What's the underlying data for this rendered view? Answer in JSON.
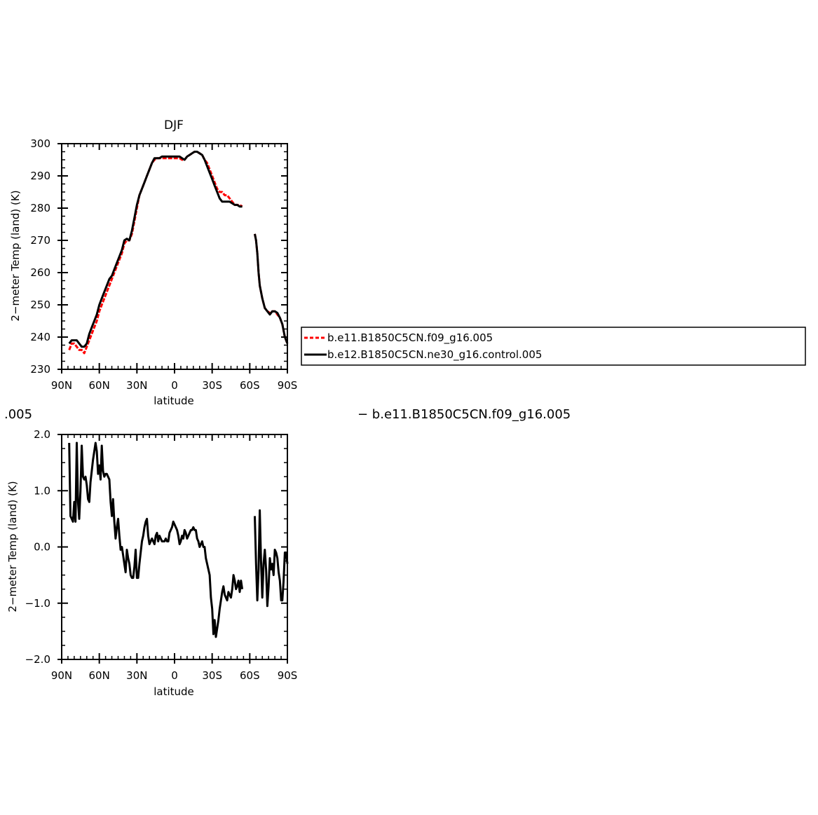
{
  "top_title": "DJF",
  "legend": {
    "items": [
      {
        "label": "b.e11.B1850C5CN.f09_g16.005",
        "color": "#ff0000",
        "dash": true
      },
      {
        "label": "b.e12.B1850C5CN.ne30_g16.control.005",
        "color": "#000000",
        "dash": false
      }
    ]
  },
  "diff_title": {
    "left": ".005",
    "right": "−  b.e11.B1850C5CN.f09_g16.005"
  },
  "chart_data": [
    {
      "type": "line",
      "title": "DJF",
      "xlabel": "latitude",
      "ylabel": "2−meter Temp (land) (K)",
      "xlim": [
        90,
        -90
      ],
      "ylim": [
        230,
        300
      ],
      "x_ticks": [
        90,
        60,
        30,
        0,
        -30,
        -60,
        -90
      ],
      "x_tick_labels": [
        "90N",
        "60N",
        "30N",
        "0",
        "30S",
        "60S",
        "90S"
      ],
      "y_ticks": [
        230,
        240,
        250,
        260,
        270,
        280,
        290,
        300
      ],
      "y_tick_labels": [
        "230",
        "240",
        "250",
        "260",
        "270",
        "280",
        "290",
        "300"
      ],
      "series": [
        {
          "name": "b.e11.B1850C5CN.f09_g16.005",
          "color": "#ff0000",
          "dash": true,
          "segments": [
            {
              "x": [
                84,
                82,
                80,
                78,
                76,
                74,
                72,
                70,
                68,
                66,
                64,
                62,
                60,
                58,
                56,
                54,
                52,
                50,
                48,
                46,
                44,
                42,
                40,
                38,
                36,
                34,
                32,
                30,
                28,
                26,
                24,
                22,
                20,
                18,
                16,
                14,
                12,
                10,
                8,
                6,
                4,
                2,
                0,
                -2,
                -4,
                -6,
                -8,
                -10,
                -12,
                -14,
                -16,
                -18,
                -20,
                -22,
                -24,
                -26,
                -28,
                -30,
                -32,
                -34,
                -36,
                -38,
                -40,
                -42,
                -44,
                -46,
                -48,
                -50,
                -52,
                -54
              ],
              "y": [
                236,
                238,
                238,
                237,
                236,
                236,
                235,
                237,
                239,
                241,
                243,
                245,
                248,
                250,
                252,
                254,
                256,
                258,
                260,
                262,
                264,
                266,
                269,
                270,
                270,
                272,
                276,
                280,
                284,
                286,
                288,
                290,
                292,
                294,
                295,
                295.5,
                295.5,
                295.5,
                295.5,
                295.5,
                295.5,
                295.5,
                295.5,
                295.5,
                295.5,
                295,
                295,
                296,
                296.5,
                297,
                297.5,
                297.5,
                297,
                296.5,
                295,
                294,
                292,
                290,
                288,
                286,
                285,
                285,
                284,
                284,
                283,
                282,
                281,
                281,
                281,
                280.5
              ]
            },
            {
              "x": [
                -64,
                -65,
                -66,
                -67,
                -68,
                -70,
                -72,
                -74,
                -76,
                -78,
                -80,
                -82,
                -84,
                -86,
                -88,
                -90
              ],
              "y": [
                272,
                270,
                266,
                260,
                256,
                252,
                249,
                248,
                247.5,
                248,
                248,
                247,
                246,
                244,
                240,
                238
              ]
            }
          ]
        },
        {
          "name": "b.e12.B1850C5CN.ne30_g16.control.005",
          "color": "#000000",
          "dash": false,
          "segments": [
            {
              "x": [
                84,
                82,
                80,
                78,
                76,
                74,
                72,
                70,
                68,
                66,
                64,
                62,
                60,
                58,
                56,
                54,
                52,
                50,
                48,
                46,
                44,
                42,
                40,
                38,
                36,
                34,
                32,
                30,
                28,
                26,
                24,
                22,
                20,
                18,
                16,
                14,
                12,
                10,
                8,
                6,
                4,
                2,
                0,
                -2,
                -4,
                -6,
                -8,
                -10,
                -12,
                -14,
                -16,
                -18,
                -20,
                -22,
                -24,
                -26,
                -28,
                -30,
                -32,
                -34,
                -36,
                -38,
                -40,
                -42,
                -44,
                -46,
                -48,
                -50,
                -52,
                -54
              ],
              "y": [
                238,
                239,
                239,
                239,
                238,
                237,
                237,
                238,
                241,
                243,
                245,
                247,
                250,
                252,
                254,
                256,
                258,
                259,
                261,
                263,
                265,
                267,
                270,
                270.5,
                270,
                273,
                277,
                281,
                284,
                286,
                288,
                290,
                292,
                294,
                295.5,
                295.5,
                295.5,
                296,
                296,
                296,
                296,
                296,
                296,
                296,
                296,
                295.5,
                295,
                296,
                296.5,
                297,
                297.5,
                297.5,
                297,
                296.5,
                295,
                293,
                291,
                289,
                287,
                285,
                283,
                282,
                282,
                282,
                282,
                281.5,
                281,
                281,
                280.5,
                280.5
              ]
            },
            {
              "x": [
                -64,
                -65,
                -66,
                -67,
                -68,
                -70,
                -72,
                -74,
                -76,
                -78,
                -80,
                -82,
                -84,
                -86,
                -88,
                -90
              ],
              "y": [
                272,
                270,
                266,
                260,
                256,
                252,
                249,
                248,
                247,
                248,
                248,
                247.5,
                246,
                244,
                240,
                238
              ]
            }
          ]
        }
      ]
    },
    {
      "type": "line",
      "title": "",
      "xlabel": "latitude",
      "ylabel": "2−meter Temp (land) (K)",
      "xlim": [
        90,
        -90
      ],
      "ylim": [
        -2,
        2
      ],
      "x_ticks": [
        90,
        60,
        30,
        0,
        -30,
        -60,
        -90
      ],
      "x_tick_labels": [
        "90N",
        "60N",
        "30N",
        "0",
        "30S",
        "60S",
        "90S"
      ],
      "y_ticks": [
        -2,
        -1,
        0,
        1,
        2
      ],
      "y_tick_labels": [
        "−2.0",
        "−1.0",
        "0.0",
        "1.0",
        "2.0"
      ],
      "series": [
        {
          "color": "#000000",
          "dash": false,
          "segments": [
            {
              "x": [
                84,
                83,
                82,
                81,
                80,
                79,
                78,
                77,
                76,
                75,
                74,
                73,
                72,
                71,
                70,
                69,
                68,
                67,
                66,
                65,
                64,
                63,
                62,
                61,
                60,
                59,
                58,
                57,
                56,
                55,
                54,
                53,
                52,
                51,
                50,
                49,
                48,
                47,
                46,
                45,
                44,
                43,
                42,
                41,
                40,
                39,
                38,
                37,
                36,
                35,
                34,
                33,
                32,
                31,
                30,
                29,
                28,
                27,
                26,
                25,
                24,
                23,
                22,
                21,
                20,
                19,
                18,
                17,
                16,
                15,
                14,
                13,
                12,
                11,
                10,
                9,
                8,
                7,
                6,
                5,
                4,
                3,
                2,
                1,
                0,
                -1,
                -2,
                -3,
                -4,
                -5,
                -6,
                -7,
                -8,
                -9,
                -10,
                -11,
                -12,
                -13,
                -14,
                -15,
                -16,
                -17,
                -18,
                -19,
                -20,
                -21,
                -22,
                -23,
                -24,
                -25,
                -26,
                -27,
                -28,
                -29,
                -30,
                -31,
                -32,
                -33,
                -34,
                -35,
                -36,
                -37,
                -38,
                -39,
                -40,
                -41,
                -42,
                -43,
                -44,
                -45,
                -46,
                -47,
                -48,
                -49,
                -50,
                -51,
                -52,
                -53,
                -54
              ],
              "y": [
                1.85,
                0.55,
                0.5,
                0.45,
                0.8,
                0.45,
                1.85,
                0.8,
                0.5,
                1.0,
                1.8,
                1.25,
                1.2,
                1.25,
                1.1,
                0.85,
                0.8,
                1.15,
                1.35,
                1.55,
                1.7,
                1.85,
                1.7,
                1.3,
                1.45,
                1.2,
                1.8,
                1.35,
                1.25,
                1.3,
                1.3,
                1.25,
                1.2,
                0.8,
                0.55,
                0.85,
                0.45,
                0.15,
                0.35,
                0.5,
                0.2,
                -0.05,
                0.0,
                -0.15,
                -0.3,
                -0.45,
                -0.05,
                -0.2,
                -0.3,
                -0.5,
                -0.55,
                -0.55,
                -0.35,
                -0.05,
                -0.55,
                -0.55,
                -0.3,
                -0.1,
                0.1,
                0.2,
                0.35,
                0.45,
                0.5,
                0.2,
                0.05,
                0.1,
                0.15,
                0.1,
                0.05,
                0.2,
                0.25,
                0.1,
                0.2,
                0.15,
                0.1,
                0.1,
                0.1,
                0.15,
                0.1,
                0.1,
                0.25,
                0.3,
                0.35,
                0.45,
                0.4,
                0.35,
                0.3,
                0.2,
                0.05,
                0.1,
                0.2,
                0.15,
                0.3,
                0.25,
                0.15,
                0.2,
                0.25,
                0.3,
                0.3,
                0.35,
                0.3,
                0.3,
                0.15,
                0.1,
                0.0,
                0.05,
                0.1,
                0.0,
                0.0,
                -0.2,
                -0.3,
                -0.4,
                -0.5,
                -0.9,
                -1.1,
                -1.55,
                -1.3,
                -1.6,
                -1.45,
                -1.3,
                -1.1,
                -0.95,
                -0.8,
                -0.7,
                -0.85,
                -0.9,
                -0.95,
                -0.8,
                -0.85,
                -0.9,
                -0.75,
                -0.5,
                -0.6,
                -0.75,
                -0.7,
                -0.6,
                -0.8,
                -0.6,
                -0.75
              ]
            },
            {
              "x": [
                -64,
                -65,
                -66,
                -67,
                -68,
                -69,
                -70,
                -71,
                -72,
                -73,
                -74,
                -75,
                -76,
                -77,
                -78,
                -79,
                -80,
                -81,
                -82,
                -83,
                -84,
                -85,
                -86,
                -87,
                -88,
                -89,
                -90
              ],
              "y": [
                0.55,
                -0.3,
                -0.95,
                -0.4,
                0.65,
                -0.25,
                -0.9,
                -0.3,
                -0.05,
                -0.4,
                -1.05,
                -0.7,
                -0.2,
                -0.4,
                -0.3,
                -0.5,
                -0.05,
                -0.1,
                -0.2,
                -0.45,
                -0.6,
                -0.95,
                -0.95,
                -0.6,
                -0.1,
                -0.1,
                -0.3
              ]
            }
          ]
        }
      ]
    }
  ]
}
